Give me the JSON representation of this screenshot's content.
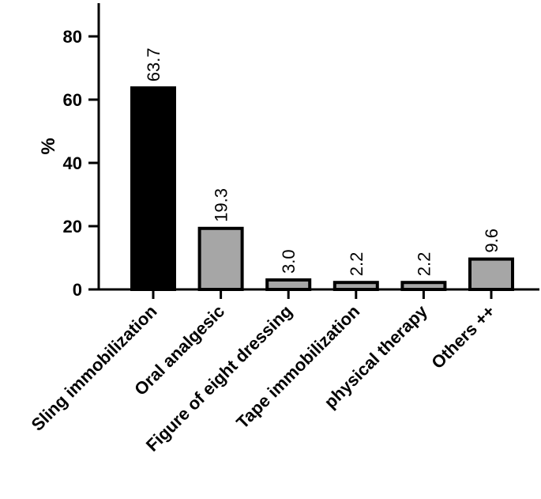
{
  "chart_data": {
    "type": "bar",
    "title": "",
    "xlabel": "",
    "ylabel": "%",
    "ylim": [
      0,
      90
    ],
    "yticks": [
      0,
      20,
      40,
      60,
      80
    ],
    "grid": false,
    "categories": [
      "Sling immobilization",
      "Oral analgesic",
      "Figure of eight dressing",
      "Tape immobilization",
      "physical therapy",
      "Others ++"
    ],
    "values": [
      63.7,
      19.3,
      3.0,
      2.2,
      2.2,
      9.6
    ],
    "value_labels": [
      "63.7",
      "19.3",
      "3.0",
      "2.2",
      "2.2",
      "9.6"
    ],
    "bar_colors": [
      "#000000",
      "#a6a6a6",
      "#a6a6a6",
      "#a6a6a6",
      "#a6a6a6",
      "#a6a6a6"
    ]
  }
}
